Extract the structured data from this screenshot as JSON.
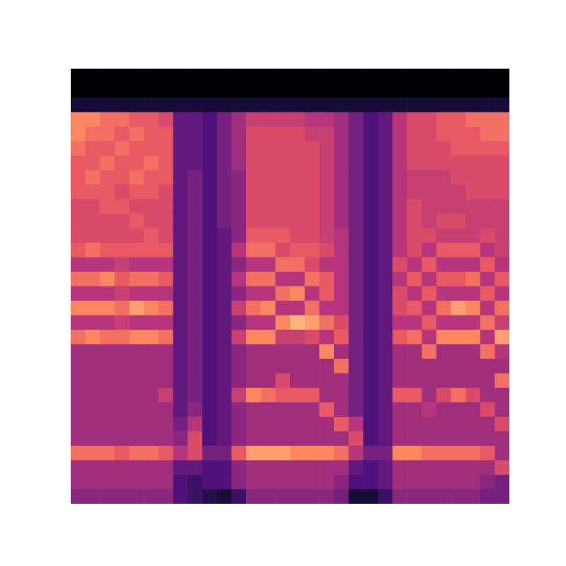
{
  "chart_data": {
    "type": "heatmap",
    "tick_labels": false,
    "color_range": [
      0,
      10
    ],
    "cells": [
      [
        0,
        0,
        1,
        7.5,
        7.5,
        7,
        6.5,
        6.5,
        6.5,
        6,
        6,
        6,
        6.5,
        5,
        7,
        5,
        7.5,
        5,
        7,
        4.5,
        4.5,
        4.5,
        4.5,
        4.5,
        4.5,
        4.5,
        7,
        4.5,
        4.5,
        4
      ],
      [
        0,
        0,
        1,
        7.5,
        7,
        6.5,
        6.5,
        7,
        6.5,
        6,
        6,
        6,
        7,
        5,
        7,
        5,
        7.5,
        5,
        7.5,
        4.5,
        4.5,
        4.5,
        4.5,
        4.5,
        4.5,
        4.5,
        7,
        4.5,
        4.5,
        4
      ],
      [
        0,
        0,
        1,
        7,
        7,
        6.5,
        7,
        6.5,
        6.5,
        6.5,
        6,
        6,
        6.5,
        5,
        7.5,
        5,
        7.5,
        5,
        7,
        4.5,
        4.5,
        4.5,
        4.5,
        4.5,
        4.5,
        4.5,
        7,
        4.5,
        4.5,
        4
      ],
      [
        0,
        0,
        1,
        7,
        6.5,
        7,
        6.5,
        6.5,
        6,
        6.5,
        6,
        6,
        6.5,
        5.5,
        6.5,
        5.5,
        7,
        5.5,
        7,
        4.5,
        4.5,
        4.5,
        4.5,
        4.5,
        4.5,
        4.5,
        6.5,
        4.5,
        4.5,
        4
      ],
      [
        0,
        0,
        1,
        6.5,
        7,
        6.5,
        6.5,
        7,
        6.5,
        6,
        6.5,
        6,
        6.5,
        5,
        7,
        5,
        8,
        5,
        7.5,
        4.5,
        4.5,
        4.5,
        4.5,
        4.5,
        4.5,
        4.5,
        7,
        4.5,
        4.5,
        4
      ],
      [
        0,
        0,
        1,
        6.5,
        6.5,
        6.5,
        7,
        6.5,
        6.5,
        6,
        6,
        6.5,
        6.5,
        5,
        7,
        5,
        7.5,
        5,
        7.5,
        4.5,
        4.5,
        4.5,
        4.5,
        4.5,
        4.5,
        4.5,
        7,
        4.5,
        4.5,
        4
      ],
      [
        0,
        0,
        1,
        6,
        6.5,
        6.5,
        6.5,
        6.5,
        6,
        6,
        6,
        6,
        6.5,
        5,
        6.5,
        5,
        7,
        5,
        7,
        4.5,
        4.5,
        4.5,
        5.5,
        4.5,
        4.5,
        4.5,
        6.5,
        4.5,
        4.5,
        4
      ],
      [
        0,
        0,
        1,
        3,
        3,
        3,
        3,
        3,
        3,
        3,
        3,
        3,
        3,
        3,
        3,
        3,
        3,
        3,
        3,
        3,
        3,
        3,
        3,
        3,
        3.5,
        4,
        5,
        3,
        2.5,
        2.5
      ],
      [
        0,
        0,
        1,
        3,
        3,
        3,
        3,
        3.5,
        3.5,
        3.5,
        3.5,
        3.5,
        3.5,
        3.5,
        3.5,
        3.5,
        3.5,
        3.5,
        3.5,
        3.5,
        3.5,
        3.5,
        3.5,
        4,
        5,
        6,
        6,
        3,
        2,
        2
      ],
      [
        0,
        0,
        1,
        2.5,
        2.5,
        2.5,
        2.5,
        2.5,
        2.5,
        2.5,
        2.5,
        2.5,
        2.5,
        2.5,
        2.5,
        2.5,
        2.5,
        2.5,
        2.5,
        2.5,
        2.5,
        2.5,
        2.5,
        2.5,
        2.5,
        2.5,
        3.5,
        2.5,
        2.5,
        1.5
      ],
      [
        0,
        0,
        1,
        3.5,
        3.5,
        3.5,
        3.5,
        3.5,
        3.5,
        3.5,
        3.5,
        3,
        3,
        3,
        3,
        3,
        3,
        3,
        3,
        3,
        3,
        3,
        3,
        3,
        3,
        3,
        3.5,
        2.5,
        2.5,
        1
      ],
      [
        0,
        0,
        1,
        4.5,
        4.5,
        4.5,
        4.5,
        4,
        4,
        4,
        4,
        4,
        5,
        4,
        5,
        4,
        5.5,
        4,
        5.5,
        4,
        4,
        4,
        5.5,
        4,
        4,
        4,
        6.5,
        4,
        4,
        2
      ],
      [
        0,
        0,
        1,
        5.5,
        6,
        6,
        6,
        6,
        6,
        6,
        6,
        6.5,
        7,
        5,
        7,
        5,
        7,
        5,
        7.5,
        4.5,
        4.5,
        4.5,
        7.5,
        4.5,
        4.5,
        4.5,
        8,
        4.5,
        4.5,
        4
      ],
      [
        0,
        0,
        1,
        5.5,
        6,
        6,
        6,
        6,
        6,
        6,
        6,
        6.5,
        7,
        5,
        7,
        5,
        7.5,
        5,
        7.5,
        4.5,
        4.5,
        4.5,
        7,
        4.5,
        4.5,
        4.5,
        8,
        4.5,
        4.5,
        4
      ],
      [
        0,
        0,
        1,
        5.5,
        6,
        6,
        6,
        6,
        6,
        6,
        6,
        6.5,
        6,
        7,
        5,
        7,
        5,
        7.5,
        5.5,
        4.5,
        4.5,
        6,
        6.5,
        4.5,
        4.5,
        4.5,
        8,
        4.5,
        4.5,
        4
      ],
      [
        0,
        0,
        1,
        5.5,
        6,
        6,
        6,
        6,
        6,
        6,
        6,
        6,
        6.5,
        7,
        5,
        7.5,
        5,
        8.5,
        5.5,
        4.5,
        4.5,
        4.5,
        6.5,
        4.5,
        4.5,
        4.5,
        7.5,
        4.5,
        4.5,
        4
      ],
      [
        0,
        0,
        1,
        5,
        5.5,
        6,
        6,
        6,
        6,
        6,
        6,
        6,
        6.5,
        6,
        7,
        5,
        7,
        8,
        6,
        4.5,
        4.5,
        4.5,
        6.5,
        4.5,
        4.5,
        4.5,
        7.5,
        4.5,
        4.5,
        4
      ],
      [
        0,
        0,
        1,
        5,
        5.5,
        5.5,
        5.5,
        5.5,
        5.5,
        5.5,
        5.5,
        5.5,
        6,
        5,
        6.5,
        6.5,
        5,
        7,
        5,
        7.5,
        4.5,
        4.5,
        4.5,
        6.5,
        4.5,
        4.5,
        7.5,
        4.5,
        4.5,
        4
      ],
      [
        0,
        0,
        1,
        4.5,
        4.5,
        4.5,
        4.5,
        4.5,
        4.5,
        4.5,
        4.5,
        5,
        5,
        5,
        5,
        5,
        5,
        6,
        6.5,
        4.5,
        7,
        4.5,
        4.5,
        4.5,
        6.5,
        4.5,
        7,
        4.5,
        4,
        3.5
      ],
      [
        0,
        0,
        1,
        3.5,
        3.5,
        3.5,
        3.5,
        3.5,
        3.5,
        3.5,
        3.5,
        3.5,
        3.5,
        3.5,
        3.5,
        3.5,
        3.5,
        3.5,
        3.5,
        3.5,
        3.5,
        3.5,
        3.5,
        3.5,
        5,
        6,
        5,
        3,
        2.5,
        1
      ],
      [
        0,
        0,
        1,
        2.5,
        2.5,
        2.5,
        2.5,
        2.5,
        2.5,
        2.5,
        2.5,
        2.5,
        2.5,
        2.5,
        2.5,
        2.5,
        2.5,
        2.5,
        2.5,
        2.5,
        2.5,
        2.5,
        2.5,
        2.5,
        2.5,
        2.5,
        3.5,
        2.5,
        2.5,
        1
      ],
      [
        0,
        0,
        1,
        3,
        3,
        3,
        3,
        3,
        3,
        3,
        3,
        3,
        3,
        3,
        3,
        3,
        3,
        3,
        3,
        3,
        3,
        3,
        3,
        3,
        3,
        3,
        3.5,
        3,
        3,
        2
      ],
      [
        0,
        0,
        1,
        5,
        5,
        5,
        5,
        5,
        5,
        5,
        5,
        5,
        5,
        6,
        5,
        6,
        6,
        5,
        6.5,
        4.5,
        4.5,
        4.5,
        6.5,
        4.5,
        4.5,
        4.5,
        7.5,
        4.5,
        4.5,
        4
      ],
      [
        0,
        0,
        1,
        6,
        6,
        6,
        6,
        5.5,
        5.5,
        6,
        6,
        6,
        6,
        5,
        6.5,
        5,
        6.5,
        5,
        7,
        4.5,
        4.5,
        4.5,
        6.5,
        4.5,
        4.5,
        4.5,
        7.5,
        4.5,
        4.5,
        4
      ],
      [
        0,
        0,
        1,
        6,
        6,
        6,
        6,
        5.5,
        5.5,
        5.5,
        5.5,
        6,
        5,
        6.5,
        5,
        6.5,
        5,
        6.5,
        5,
        7,
        4.5,
        4.5,
        4.5,
        5,
        4.5,
        4.5,
        7,
        4.5,
        4.5,
        4
      ],
      [
        0,
        0,
        1,
        6.5,
        6.5,
        6,
        6,
        5.5,
        5.5,
        5.5,
        6,
        5.5,
        6.5,
        5,
        6.5,
        5,
        7,
        5,
        7.5,
        4.5,
        4.5,
        4.5,
        6,
        4.5,
        4.5,
        4.5,
        7,
        4.5,
        4.5,
        4
      ],
      [
        0,
        0,
        1,
        6.5,
        6.5,
        6.5,
        6,
        6,
        5.5,
        5.5,
        6,
        5.5,
        6.5,
        5,
        6.5,
        5,
        8,
        5,
        7.5,
        4.5,
        4.5,
        4.5,
        7,
        4.5,
        4.5,
        4.5,
        7,
        4.5,
        4.5,
        4
      ],
      [
        0,
        0,
        1,
        7,
        6.5,
        6.5,
        6,
        6,
        6,
        5.5,
        5.5,
        5.5,
        6.5,
        5,
        7,
        5,
        7.5,
        5,
        7.5,
        4.5,
        4.5,
        4.5,
        6,
        4.5,
        4.5,
        4.5,
        7,
        4.5,
        4.5,
        4
      ],
      [
        0,
        0,
        1,
        7,
        7,
        6.5,
        6,
        6,
        6,
        5.5,
        5.5,
        6,
        5,
        6.5,
        5,
        6.5,
        5,
        7,
        5,
        7,
        4.5,
        4.5,
        4.5,
        6,
        4.5,
        4.5,
        6.5,
        4.5,
        4,
        3.5
      ],
      [
        0,
        0,
        1,
        7,
        7,
        6.5,
        6,
        6,
        6,
        5.5,
        5.5,
        5.5,
        5.5,
        5,
        6.5,
        5,
        7,
        5.5,
        8,
        5,
        4.5,
        7,
        4.5,
        4.5,
        6,
        4.5,
        4.5,
        6,
        3.5,
        3.5
      ]
    ]
  }
}
